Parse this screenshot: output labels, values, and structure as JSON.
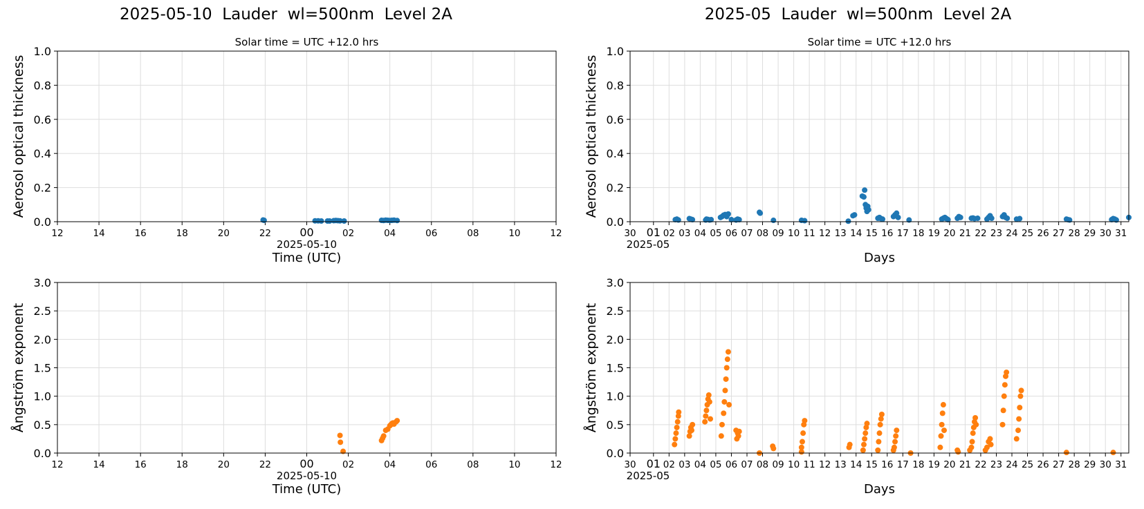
{
  "titles": {
    "left": "2025-05-10  Lauder  wl=500nm  Level 2A",
    "right": "2025-05  Lauder  wl=500nm  Level 2A"
  },
  "colors": {
    "aod": "#1f77b4",
    "angstrom": "#ff7f0e",
    "grid": "#dddddd"
  },
  "chart_data": [
    {
      "type": "scatter",
      "subtitle": "Solar time = UTC +12.0 hrs",
      "xlabel": "Time (UTC)",
      "ylabel": "Aerosol optical thickness",
      "x_ticks": [
        "12",
        "14",
        "16",
        "18",
        "20",
        "22",
        "00",
        "02",
        "04",
        "06",
        "08",
        "10",
        "12"
      ],
      "x_sublabel": "2025-05-10",
      "ylim": [
        0,
        1.0
      ],
      "y_ticks": [
        "0.0",
        "0.2",
        "0.4",
        "0.6",
        "0.8",
        "1.0"
      ],
      "grid": true,
      "xlim_hours": [
        -12,
        12
      ],
      "series": [
        {
          "x": [
            -2.1,
            -2.05,
            0.4,
            0.55,
            0.7,
            1.0,
            1.1,
            1.3,
            1.4,
            1.5,
            1.6,
            1.8,
            3.6,
            3.7,
            3.8,
            3.9,
            4.0,
            4.1,
            4.2,
            4.35
          ],
          "y": [
            0.01,
            0.008,
            0.005,
            0.005,
            0.004,
            0.004,
            0.004,
            0.006,
            0.007,
            0.006,
            0.005,
            0.004,
            0.008,
            0.007,
            0.009,
            0.008,
            0.007,
            0.008,
            0.009,
            0.007
          ]
        }
      ]
    },
    {
      "type": "scatter",
      "subtitle": "Solar time = UTC +12.0 hrs",
      "xlabel": "Days",
      "ylabel": "Aerosol optical thickness",
      "x_ticks": [
        "30",
        "01",
        "02",
        "03",
        "04",
        "05",
        "06",
        "07",
        "08",
        "09",
        "10",
        "11",
        "12",
        "13",
        "14",
        "15",
        "16",
        "17",
        "18",
        "19",
        "20",
        "21",
        "22",
        "23",
        "24",
        "25",
        "26",
        "27",
        "28",
        "29",
        "30",
        "31"
      ],
      "x_sublabel": "2025-05",
      "ylim": [
        0,
        1.0
      ],
      "y_ticks": [
        "0.0",
        "0.2",
        "0.4",
        "0.6",
        "0.8",
        "1.0"
      ],
      "grid": true,
      "xlim_days": [
        0,
        32
      ],
      "series": [
        {
          "x": [
            2.9,
            3.0,
            3.1,
            3.8,
            3.9,
            4.0,
            4.85,
            4.9,
            5.0,
            5.1,
            5.2,
            5.8,
            5.9,
            6.0,
            6.1,
            6.2,
            6.3,
            6.5,
            6.8,
            6.9,
            7.0,
            8.3,
            8.35,
            9.2,
            11.0,
            11.2,
            14.0,
            14.3,
            14.4,
            14.9,
            15.0,
            15.05,
            15.1,
            15.15,
            15.2,
            15.25,
            15.3,
            15.9,
            16.0,
            16.1,
            16.2,
            16.9,
            17.0,
            17.1,
            17.2,
            17.9,
            20.0,
            20.1,
            20.2,
            20.3,
            20.4,
            21.0,
            21.1,
            21.2,
            21.9,
            22.0,
            22.1,
            22.3,
            22.9,
            23.0,
            23.1,
            23.2,
            23.9,
            24.0,
            24.1,
            24.2,
            24.8,
            25.0,
            28.0,
            28.1,
            28.2,
            30.9,
            31.0,
            31.1,
            31.2,
            32.0
          ],
          "y": [
            0.012,
            0.015,
            0.01,
            0.018,
            0.015,
            0.012,
            0.01,
            0.015,
            0.013,
            0.01,
            0.012,
            0.025,
            0.03,
            0.038,
            0.042,
            0.03,
            0.045,
            0.012,
            0.01,
            0.015,
            0.012,
            0.055,
            0.05,
            0.008,
            0.008,
            0.006,
            0.003,
            0.035,
            0.04,
            0.15,
            0.145,
            0.185,
            0.1,
            0.08,
            0.06,
            0.09,
            0.07,
            0.02,
            0.025,
            0.018,
            0.015,
            0.03,
            0.04,
            0.05,
            0.025,
            0.01,
            0.015,
            0.02,
            0.025,
            0.018,
            0.012,
            0.02,
            0.03,
            0.025,
            0.02,
            0.022,
            0.018,
            0.02,
            0.015,
            0.025,
            0.035,
            0.02,
            0.03,
            0.04,
            0.025,
            0.02,
            0.015,
            0.018,
            0.015,
            0.012,
            0.01,
            0.012,
            0.018,
            0.015,
            0.01,
            0.025
          ]
        }
      ]
    },
    {
      "type": "scatter",
      "xlabel": "Time (UTC)",
      "ylabel": "Ångström exponent",
      "x_ticks": [
        "12",
        "14",
        "16",
        "18",
        "20",
        "22",
        "00",
        "02",
        "04",
        "06",
        "08",
        "10",
        "12"
      ],
      "x_sublabel": "2025-05-10",
      "ylim": [
        0,
        3.0
      ],
      "y_ticks": [
        "0.0",
        "0.5",
        "1.0",
        "1.5",
        "2.0",
        "2.5",
        "3.0"
      ],
      "grid": true,
      "xlim_hours": [
        -12,
        12
      ],
      "series": [
        {
          "x": [
            1.6,
            1.62,
            1.75,
            3.6,
            3.65,
            3.7,
            3.8,
            3.9,
            4.0,
            4.05,
            4.1,
            4.15,
            4.2,
            4.3,
            4.35
          ],
          "y": [
            0.31,
            0.19,
            0.03,
            0.22,
            0.26,
            0.3,
            0.4,
            0.42,
            0.48,
            0.5,
            0.52,
            0.53,
            0.51,
            0.55,
            0.57
          ]
        }
      ]
    },
    {
      "type": "scatter",
      "xlabel": "Days",
      "ylabel": "Ångström exponent",
      "x_ticks": [
        "30",
        "01",
        "02",
        "03",
        "04",
        "05",
        "06",
        "07",
        "08",
        "09",
        "10",
        "11",
        "12",
        "13",
        "14",
        "15",
        "16",
        "17",
        "18",
        "19",
        "20",
        "21",
        "22",
        "23",
        "24",
        "25",
        "26",
        "27",
        "28",
        "29",
        "30",
        "31"
      ],
      "x_sublabel": "2025-05",
      "ylim": [
        0,
        3.0
      ],
      "y_ticks": [
        "0.0",
        "0.5",
        "1.0",
        "1.5",
        "2.0",
        "2.5",
        "3.0"
      ],
      "grid": true,
      "xlim_days": [
        0,
        32
      ],
      "series": [
        {
          "x": [
            2.85,
            2.9,
            2.95,
            3.0,
            3.05,
            3.1,
            3.12,
            3.8,
            3.85,
            3.9,
            3.95,
            4.0,
            4.8,
            4.85,
            4.9,
            4.95,
            5.0,
            5.05,
            5.1,
            5.15,
            5.85,
            5.9,
            6.0,
            6.05,
            6.1,
            6.15,
            6.2,
            6.25,
            6.3,
            6.35,
            6.8,
            6.85,
            6.9,
            6.95,
            7.0,
            8.3,
            9.15,
            9.2,
            11.0,
            11.05,
            11.1,
            11.15,
            11.2,
            11.0,
            14.05,
            14.1,
            14.95,
            15.0,
            15.05,
            15.1,
            15.15,
            15.2,
            15.9,
            15.95,
            16.0,
            16.05,
            16.1,
            16.15,
            16.9,
            16.95,
            17.0,
            17.05,
            17.1,
            18.0,
            19.9,
            19.95,
            20.0,
            20.05,
            20.1,
            20.15,
            21.0,
            21.05,
            21.8,
            21.9,
            21.95,
            22.0,
            22.05,
            22.1,
            22.15,
            22.2,
            22.8,
            22.9,
            23.0,
            23.1,
            23.15,
            23.9,
            23.95,
            24.0,
            24.05,
            24.1,
            24.15,
            24.8,
            24.9,
            24.95,
            25.0,
            25.05,
            25.1,
            28.0,
            31.0
          ],
          "y": [
            0.15,
            0.25,
            0.35,
            0.45,
            0.55,
            0.65,
            0.72,
            0.3,
            0.38,
            0.45,
            0.4,
            0.5,
            0.55,
            0.65,
            0.75,
            0.85,
            0.95,
            1.02,
            0.9,
            0.6,
            0.3,
            0.5,
            0.7,
            0.9,
            1.1,
            1.3,
            1.5,
            1.65,
            1.78,
            0.85,
            0.4,
            0.25,
            0.35,
            0.3,
            0.38,
            0.0,
            0.12,
            0.08,
            0.1,
            0.2,
            0.35,
            0.5,
            0.57,
            0.02,
            0.1,
            0.15,
            0.05,
            0.15,
            0.25,
            0.35,
            0.45,
            0.52,
            0.05,
            0.2,
            0.35,
            0.5,
            0.6,
            0.68,
            0.05,
            0.1,
            0.2,
            0.3,
            0.4,
            0.0,
            0.1,
            0.3,
            0.5,
            0.7,
            0.85,
            0.4,
            0.05,
            0.02,
            0.05,
            0.1,
            0.2,
            0.35,
            0.45,
            0.55,
            0.62,
            0.5,
            0.05,
            0.1,
            0.2,
            0.25,
            0.15,
            0.5,
            0.75,
            1.0,
            1.2,
            1.35,
            1.42,
            0.25,
            0.4,
            0.6,
            0.8,
            1.0,
            1.1,
            0.01,
            0.01
          ]
        }
      ]
    }
  ]
}
